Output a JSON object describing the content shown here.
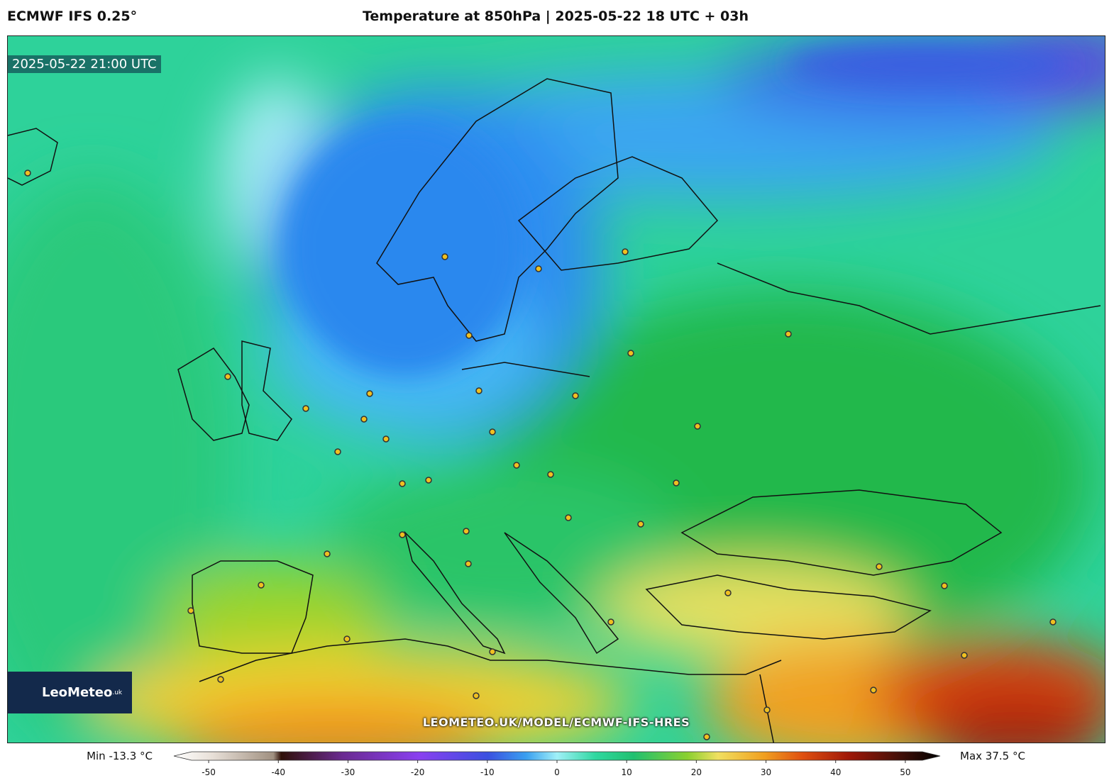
{
  "header": {
    "model": "ECMWF IFS 0.25°",
    "title": "Temperature at 850hPa | 2025-05-22 18 UTC + 03h"
  },
  "map": {
    "timestamp": "2025-05-22 21:00 UTC",
    "watermark": "LEOMETEO.UK/MODEL/ECMWF-IFS-HRES",
    "logo": {
      "name": "LeoMeteo",
      "suffix": ".uk"
    }
  },
  "colorbar": {
    "min_label": "Min -13.3 °C",
    "max_label": "Max 37.5 °C",
    "lim": [
      -55,
      55
    ],
    "ticks": [
      -50,
      -40,
      -30,
      -20,
      -10,
      0,
      10,
      20,
      30,
      40,
      50
    ]
  }
}
